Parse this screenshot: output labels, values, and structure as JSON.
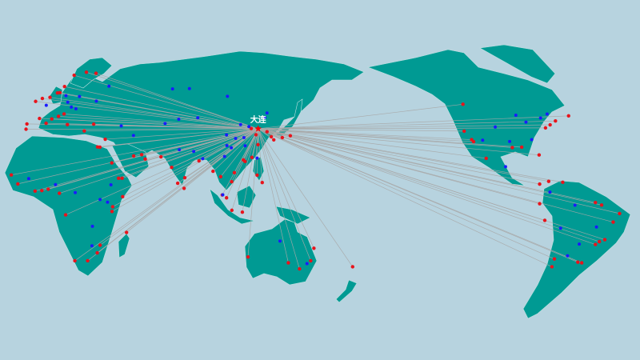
{
  "origin": {
    "name": "大连",
    "lon": 121.6,
    "lat": 38.9,
    "color": "#ff0000"
  },
  "colors": {
    "ocean": "#b7d3df",
    "land": "#009a93",
    "route": "#a8a8a8",
    "port": "#e8141c",
    "inland": "#1a1aff"
  },
  "ports": [
    [
      -9.1,
      38.7
    ],
    [
      -8.6,
      41.1
    ],
    [
      -1.5,
      43.5
    ],
    [
      2.2,
      41.4
    ],
    [
      5.4,
      43.3
    ],
    [
      -3.7,
      50.4
    ],
    [
      0.1,
      51.5
    ],
    [
      4.4,
      51.9
    ],
    [
      8.6,
      53.5
    ],
    [
      10,
      53.6
    ],
    [
      12.6,
      55.7
    ],
    [
      18,
      59.3
    ],
    [
      24.9,
      60.2
    ],
    [
      30.3,
      59.9
    ],
    [
      9.2,
      44.4
    ],
    [
      14.2,
      40.8
    ],
    [
      12.3,
      45.4
    ],
    [
      23.7,
      37.9
    ],
    [
      29,
      41
    ],
    [
      35.5,
      33.9
    ],
    [
      31.2,
      30
    ],
    [
      32.5,
      29.9
    ],
    [
      39.2,
      21.5
    ],
    [
      43,
      12.8
    ],
    [
      45,
      12.8
    ],
    [
      51.5,
      25.3
    ],
    [
      56,
      26
    ],
    [
      58,
      23.6
    ],
    [
      66.9,
      24.8
    ],
    [
      72.9,
      19
    ],
    [
      76.3,
      9.9
    ],
    [
      80.3,
      13.1
    ],
    [
      88.3,
      22.6
    ],
    [
      79.9,
      6.9
    ],
    [
      96.2,
      16.8
    ],
    [
      100.5,
      13.7
    ],
    [
      101.4,
      3
    ],
    [
      103.8,
      1.3
    ],
    [
      106.8,
      -6.1
    ],
    [
      112.7,
      -7.2
    ],
    [
      106.7,
      10.8
    ],
    [
      108.2,
      16
    ],
    [
      114.2,
      22.3
    ],
    [
      113.3,
      23.1
    ],
    [
      118.1,
      24.5
    ],
    [
      121.5,
      31.2
    ],
    [
      120.4,
      36.1
    ],
    [
      117.7,
      39
    ],
    [
      129,
      35.1
    ],
    [
      126.6,
      37.5
    ],
    [
      135.2,
      34.7
    ],
    [
      139.7,
      35.6
    ],
    [
      130.4,
      33.6
    ],
    [
      121,
      14.6
    ],
    [
      123.9,
      10.3
    ],
    [
      -17.4,
      14.7
    ],
    [
      -13.7,
      9.5
    ],
    [
      -4,
      5.3
    ],
    [
      -0.2,
      5.6
    ],
    [
      3.4,
      6.4
    ],
    [
      9.7,
      4
    ],
    [
      13.2,
      -8.8
    ],
    [
      18.4,
      -33.9
    ],
    [
      25.6,
      -33.9
    ],
    [
      31,
      -29.9
    ],
    [
      32.6,
      -25.9
    ],
    [
      39.3,
      -6.8
    ],
    [
      39.7,
      -4
    ],
    [
      45.3,
      2
    ],
    [
      47.5,
      -18.9
    ],
    [
      115.9,
      -32
    ],
    [
      138.6,
      -34.9
    ],
    [
      144.9,
      -37.8
    ],
    [
      151.2,
      -33.9
    ],
    [
      153,
      -27.5
    ],
    [
      174.8,
      -36.8
    ],
    [
      -123.1,
      49.3
    ],
    [
      -122.4,
      37.8
    ],
    [
      -118.2,
      33.7
    ],
    [
      -117.1,
      32.7
    ],
    [
      -110,
      24
    ],
    [
      -95.3,
      29.7
    ],
    [
      -90,
      29.9
    ],
    [
      -80.2,
      25.8
    ],
    [
      -76.6,
      39.3
    ],
    [
      -74,
      40.7
    ],
    [
      -71,
      42.4
    ],
    [
      -63.6,
      44.6
    ],
    [
      -79.9,
      9.4
    ],
    [
      -66.9,
      10.5
    ],
    [
      -74.8,
      11
    ],
    [
      -79.9,
      -2.2
    ],
    [
      -77,
      -12
    ],
    [
      -71.6,
      -33
    ],
    [
      -73,
      -36.8
    ],
    [
      -58.4,
      -34.6
    ],
    [
      -56.2,
      -34.9
    ],
    [
      -48.5,
      -25.5
    ],
    [
      -46.3,
      -24
    ],
    [
      -43.2,
      -22.9
    ],
    [
      -38.5,
      -13
    ],
    [
      -34.9,
      -8
    ],
    [
      -48.5,
      -1.5
    ],
    [
      -45,
      -3
    ]
  ],
  "inland": [
    [
      2.3,
      48.9
    ],
    [
      13.4,
      52.5
    ],
    [
      16.4,
      48.2
    ],
    [
      21,
      52.2
    ],
    [
      37.6,
      55.8
    ],
    [
      30.5,
      50.5
    ],
    [
      19,
      47.5
    ],
    [
      14.4,
      50.1
    ],
    [
      44.5,
      40.2
    ],
    [
      51.4,
      35.7
    ],
    [
      69.2,
      41.3
    ],
    [
      76.9,
      43.2
    ],
    [
      77.2,
      28.6
    ],
    [
      85.3,
      27.7
    ],
    [
      90.4,
      23.8
    ],
    [
      104,
      30.7
    ],
    [
      106.5,
      29.6
    ],
    [
      114.3,
      30.6
    ],
    [
      113.6,
      34.7
    ],
    [
      116.4,
      39.9
    ],
    [
      111.7,
      40.8
    ],
    [
      125.3,
      43.9
    ],
    [
      126.6,
      45.8
    ],
    [
      87.6,
      43.8
    ],
    [
      103.8,
      36
    ],
    [
      108.9,
      34.3
    ],
    [
      102.7,
      25
    ],
    [
      82.9,
      55
    ],
    [
      104.3,
      52.3
    ],
    [
      73.4,
      54.9
    ],
    [
      38.7,
      9
    ],
    [
      32.6,
      0.3
    ],
    [
      36.8,
      -1.3
    ],
    [
      28.3,
      -15.4
    ],
    [
      28,
      -26.2
    ],
    [
      7.5,
      9.1
    ],
    [
      -7.6,
      12.6
    ],
    [
      18.6,
      4.4
    ],
    [
      -104.9,
      39.7
    ],
    [
      -87.6,
      41.9
    ],
    [
      -84.4,
      33.7
    ],
    [
      -96.8,
      32.8
    ],
    [
      -99.1,
      19.4
    ],
    [
      -93.3,
      44.9
    ],
    [
      -112,
      33.4
    ],
    [
      -79.4,
      43.7
    ],
    [
      -75.7,
      45.4
    ],
    [
      -47.9,
      -15.8
    ],
    [
      -60,
      -3.1
    ],
    [
      -57.6,
      -25.3
    ],
    [
      -68.1,
      -16.5
    ],
    [
      -74.1,
      4.7
    ],
    [
      -64.2,
      -31.4
    ],
    [
      133.9,
      -23.7
    ],
    [
      149.1,
      -35.3
    ],
    [
      101.7,
      3.1
    ],
    [
      121,
      24.1
    ]
  ]
}
